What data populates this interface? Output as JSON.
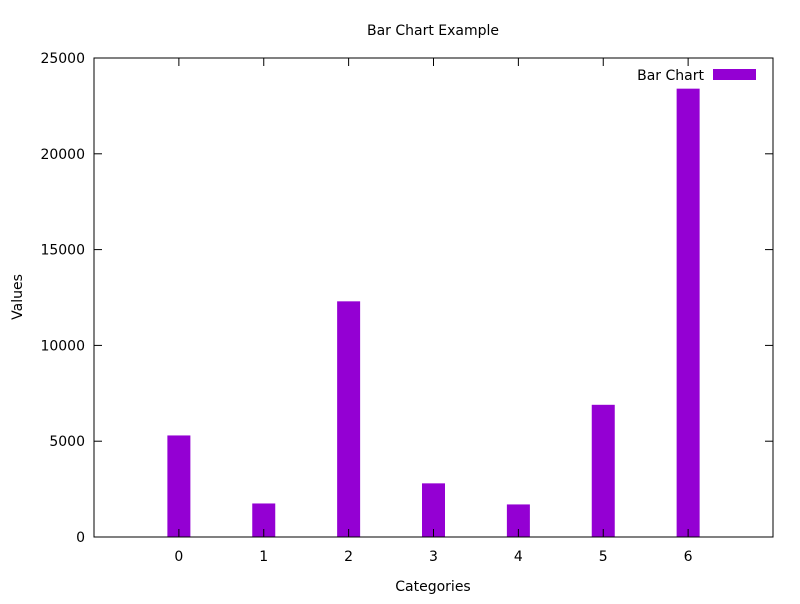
{
  "chart_data": {
    "type": "bar",
    "title": "Bar Chart Example",
    "xlabel": "Categories",
    "ylabel": "Values",
    "categories": [
      "0",
      "1",
      "2",
      "3",
      "4",
      "5",
      "6"
    ],
    "series": [
      {
        "name": "Bar Chart",
        "values": [
          5300,
          1750,
          12300,
          2800,
          1700,
          6900,
          23400
        ],
        "color": "#9400d3"
      }
    ],
    "xlim": [
      -1,
      7
    ],
    "ylim": [
      0,
      25000
    ],
    "yticks": [
      0,
      5000,
      10000,
      15000,
      20000,
      25000
    ],
    "ytick_labels": [
      "0",
      "5000",
      "10000",
      "15000",
      "20000",
      "25000"
    ],
    "legend_position": "top-right",
    "grid": false
  }
}
